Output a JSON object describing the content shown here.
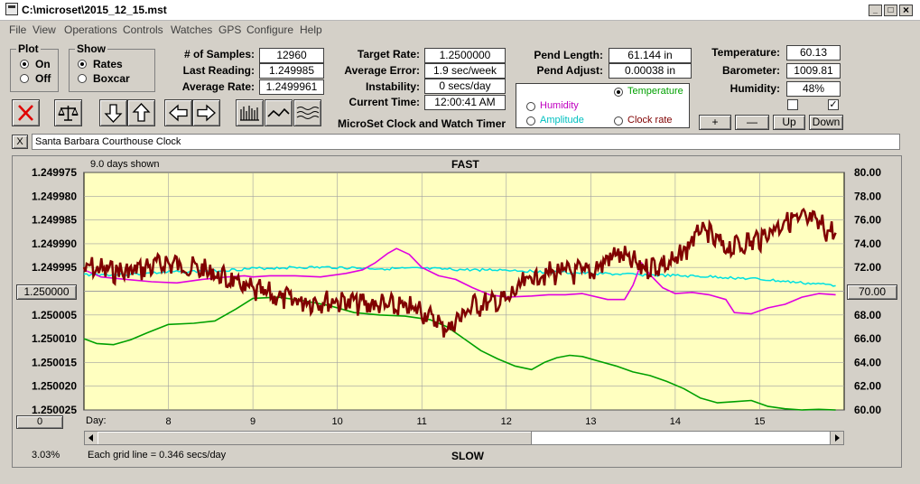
{
  "window": {
    "title": "C:\\microset\\2015_12_15.mst",
    "minimize": "_",
    "maximize": "□",
    "close": "×"
  },
  "menu": [
    "File",
    "View",
    "Operations",
    "Controls",
    "Watches",
    "GPS",
    "Configure",
    "Help"
  ],
  "plot_group": {
    "label": "Plot",
    "options": [
      "On",
      "Off"
    ],
    "selected": "On"
  },
  "show_group": {
    "label": "Show",
    "options": [
      "Rates",
      "Boxcar"
    ],
    "selected": "Rates"
  },
  "stats": {
    "samples_label": "# of Samples:",
    "samples": "12960",
    "last_reading_label": "Last Reading:",
    "last_reading": "1.249985",
    "average_rate_label": "Average Rate:",
    "average_rate": "1.2499961",
    "target_rate_label": "Target Rate:",
    "target_rate": "1.2500000",
    "average_error_label": "Average Error:",
    "average_error": "1.9 sec/week",
    "instability_label": "Instability:",
    "instability": "0 secs/day",
    "current_time_label": "Current Time:",
    "current_time": "12:00:41 AM",
    "pend_length_label": "Pend Length:",
    "pend_length": "61.144 in",
    "pend_adjust_label": "Pend Adjust:",
    "pend_adjust": "0.00038 in",
    "temperature_label": "Temperature:",
    "temperature": "60.13",
    "barometer_label": "Barometer:",
    "barometer": "1009.81",
    "humidity_label": "Humidity:",
    "humidity": "48%"
  },
  "app_name": "MicroSet Clock and Watch Timer",
  "sensor_options": {
    "temperature": "Temperature",
    "humidity": "Humidity",
    "amplitude": "Amplitude",
    "clock_rate": "Clock rate",
    "selected": "Temperature"
  },
  "scale_buttons": {
    "plus": "+",
    "minus": "—",
    "up": "Up",
    "down": "Down"
  },
  "checkboxes": {
    "left": "",
    "right": "✓"
  },
  "clock_name": "Santa Barbara Courthouse Clock",
  "clock_close": "X",
  "chart_header": {
    "days_shown": "9.0 days shown",
    "top": "FAST",
    "bottom": "SLOW",
    "day_label": "Day:",
    "zero_button": "0",
    "left_center_button": "1.250000",
    "right_center_button": "70.00"
  },
  "status": {
    "percent": "3.03%",
    "grid": "Each grid line = 0.346 secs/day"
  },
  "colors": {
    "plot_bg": "#ffffc0",
    "rate": "#800000",
    "temperature": "#00a000",
    "humidity": "#e000e0",
    "amplitude": "#00e0e0",
    "temperature_text": "#00a000",
    "humidity_text": "#c000c0",
    "amplitude_text": "#00c0c0"
  },
  "chart_data": {
    "type": "line",
    "title": "FAST",
    "xlabel": "Day:",
    "x_ticks": [
      8,
      9,
      10,
      11,
      12,
      13,
      14,
      15
    ],
    "xlim": [
      7.0,
      16.0
    ],
    "y_left_ticks": [
      "1.249975",
      "1.249980",
      "1.249985",
      "1.249990",
      "1.249995",
      "1.250000",
      "1.250005",
      "1.250010",
      "1.250015",
      "1.250020",
      "1.250025"
    ],
    "y_right_ticks": [
      "80.00",
      "78.00",
      "76.00",
      "74.00",
      "72.00",
      "70.00",
      "68.00",
      "66.00",
      "64.00",
      "62.00",
      "60.00"
    ],
    "ylim_rate": [
      1.249975,
      1.250025
    ],
    "ylim_temp": [
      60,
      80
    ],
    "series": [
      {
        "name": "Temperature",
        "color": "#00a000",
        "axis": "right",
        "x": [
          7.0,
          7.15,
          7.35,
          7.55,
          7.75,
          8.0,
          8.3,
          8.55,
          8.8,
          9.0,
          9.3,
          9.6,
          9.9,
          10.2,
          10.5,
          10.8,
          11.1,
          11.3,
          11.5,
          11.7,
          11.9,
          12.1,
          12.3,
          12.45,
          12.6,
          12.75,
          12.9,
          13.1,
          13.3,
          13.5,
          13.7,
          13.9,
          14.1,
          14.3,
          14.5,
          14.7,
          14.9,
          15.1,
          15.3,
          15.5,
          15.7,
          15.9
        ],
        "y": [
          66.0,
          65.6,
          65.5,
          65.9,
          66.5,
          67.2,
          67.3,
          67.5,
          68.5,
          69.4,
          69.5,
          69.2,
          68.8,
          68.2,
          68.0,
          67.9,
          67.6,
          67.0,
          66.0,
          65.0,
          64.3,
          63.7,
          63.4,
          64.0,
          64.4,
          64.6,
          64.5,
          64.1,
          63.7,
          63.2,
          62.9,
          62.4,
          61.8,
          61.0,
          60.6,
          60.7,
          60.8,
          60.3,
          60.1,
          60.0,
          60.05,
          60.0
        ]
      },
      {
        "name": "Humidity",
        "color": "#e000e0",
        "axis": "right",
        "x": [
          7.0,
          7.2,
          7.5,
          7.8,
          8.1,
          8.4,
          8.7,
          8.9,
          9.0,
          9.2,
          9.5,
          9.8,
          10.1,
          10.3,
          10.45,
          10.6,
          10.7,
          10.85,
          11.0,
          11.2,
          11.4,
          11.6,
          11.8,
          12.0,
          12.3,
          12.5,
          12.7,
          12.9,
          13.2,
          13.4,
          13.5,
          13.6,
          13.7,
          13.85,
          14.0,
          14.2,
          14.4,
          14.6,
          14.7,
          14.9,
          15.1,
          15.3,
          15.5,
          15.7,
          15.9
        ],
        "y": [
          71.8,
          71.2,
          71.0,
          70.8,
          70.7,
          71.0,
          71.2,
          71.3,
          71.2,
          71.3,
          71.3,
          71.2,
          71.5,
          71.8,
          72.4,
          73.2,
          73.6,
          73.1,
          72.0,
          71.3,
          71.0,
          70.3,
          69.7,
          69.5,
          69.6,
          69.7,
          69.7,
          69.8,
          69.3,
          69.3,
          70.5,
          72.4,
          71.4,
          70.3,
          69.8,
          69.9,
          69.7,
          69.3,
          68.2,
          68.1,
          68.6,
          68.9,
          69.5,
          69.8,
          69.7
        ]
      },
      {
        "name": "Amplitude",
        "color": "#00e0e0",
        "axis": "right",
        "x": [
          7.0,
          7.5,
          8.0,
          8.5,
          9.0,
          9.5,
          10.0,
          10.5,
          11.0,
          11.5,
          12.0,
          12.5,
          13.0,
          13.5,
          14.0,
          14.5,
          15.0,
          15.5,
          15.9
        ],
        "y": [
          71.4,
          71.4,
          71.6,
          71.7,
          71.9,
          72.0,
          72.0,
          71.9,
          71.9,
          71.8,
          71.8,
          71.6,
          71.5,
          71.4,
          71.3,
          71.2,
          71.0,
          70.7,
          70.5
        ]
      },
      {
        "name": "Rate",
        "color": "#800000",
        "axis": "left",
        "x": [
          7.0,
          7.5,
          8.0,
          8.5,
          9.0,
          9.5,
          10.0,
          10.5,
          11.0,
          11.3,
          11.6,
          12.0,
          12.3,
          12.6,
          13.0,
          13.3,
          13.6,
          14.0,
          14.3,
          14.6,
          15.0,
          15.3,
          15.6,
          15.9
        ],
        "y": [
          1.249995,
          1.249996,
          1.249994,
          1.249996,
          1.25,
          1.250002,
          1.250002,
          1.250003,
          1.250004,
          1.250008,
          1.250003,
          1.250002,
          1.249997,
          1.249996,
          1.249996,
          1.249992,
          1.249995,
          1.249994,
          1.249987,
          1.249991,
          1.249989,
          1.249985,
          1.249985,
          1.249988
        ]
      }
    ]
  }
}
